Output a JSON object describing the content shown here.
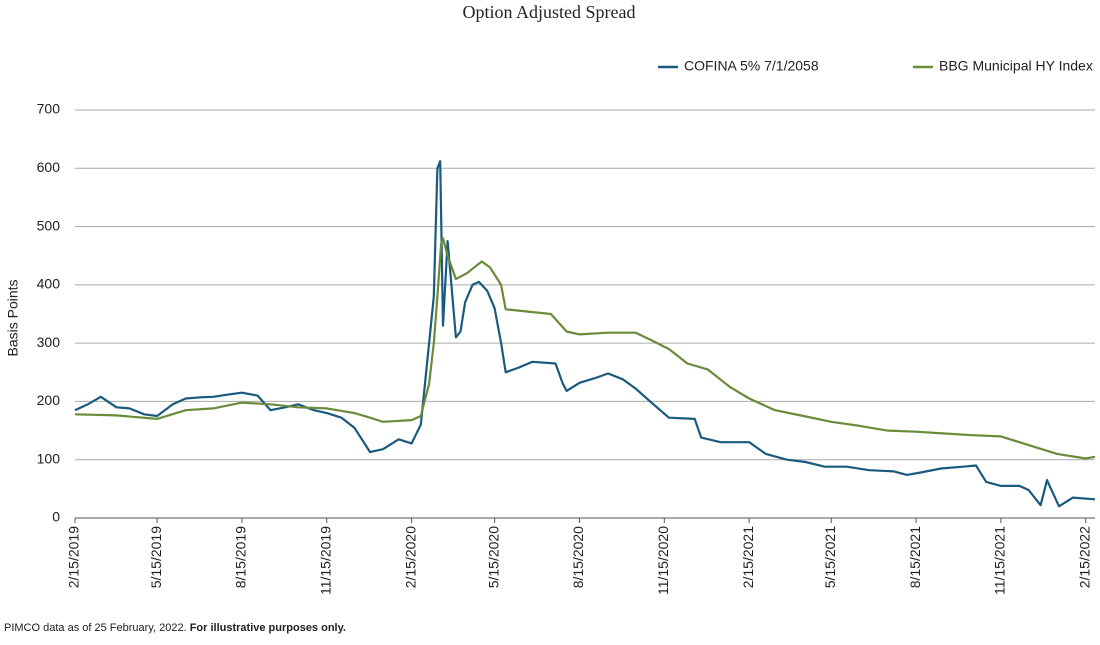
{
  "chart_data": {
    "type": "line",
    "title": "Option Adjusted Spread",
    "y_label": "Basis Points",
    "footnote": "PIMCO data as of 25 February, 2022.",
    "footnote_bold": "For illustrative purposes only.",
    "ylim": [
      0,
      700
    ],
    "yticks": [
      0,
      100,
      200,
      300,
      400,
      500,
      600,
      700
    ],
    "grid": true,
    "xlim": [
      "2019-02-15",
      "2022-02-25"
    ],
    "xticks": [
      {
        "value": "2019-02-15",
        "label": "2/15/2019"
      },
      {
        "value": "2019-05-15",
        "label": "5/15/2019"
      },
      {
        "value": "2019-08-15",
        "label": "8/15/2019"
      },
      {
        "value": "2019-11-15",
        "label": "11/15/2019"
      },
      {
        "value": "2020-02-15",
        "label": "2/15/2020"
      },
      {
        "value": "2020-05-15",
        "label": "5/15/2020"
      },
      {
        "value": "2020-08-15",
        "label": "8/15/2020"
      },
      {
        "value": "2020-11-15",
        "label": "11/15/2020"
      },
      {
        "value": "2021-02-15",
        "label": "2/15/2021"
      },
      {
        "value": "2021-05-15",
        "label": "5/15/2021"
      },
      {
        "value": "2021-08-15",
        "label": "8/15/2021"
      },
      {
        "value": "2021-11-15",
        "label": "11/15/2021"
      },
      {
        "value": "2022-02-15",
        "label": "2/15/2022"
      }
    ],
    "legend": "top-right",
    "series": [
      {
        "name": "COFINA 5% 7/1/2058",
        "color": "#1b5a7e",
        "x": [
          "2019-02-15",
          "2019-03-01",
          "2019-03-15",
          "2019-04-01",
          "2019-04-15",
          "2019-05-01",
          "2019-05-15",
          "2019-06-01",
          "2019-06-15",
          "2019-07-01",
          "2019-07-15",
          "2019-08-01",
          "2019-08-15",
          "2019-09-01",
          "2019-09-15",
          "2019-10-01",
          "2019-10-15",
          "2019-11-01",
          "2019-11-15",
          "2019-12-01",
          "2019-12-15",
          "2020-01-01",
          "2020-01-15",
          "2020-02-01",
          "2020-02-15",
          "2020-02-25",
          "2020-03-05",
          "2020-03-10",
          "2020-03-14",
          "2020-03-17",
          "2020-03-20",
          "2020-03-25",
          "2020-03-28",
          "2020-04-03",
          "2020-04-08",
          "2020-04-13",
          "2020-04-21",
          "2020-04-28",
          "2020-05-07",
          "2020-05-15",
          "2020-05-22",
          "2020-05-27",
          "2020-06-10",
          "2020-06-25",
          "2020-07-20",
          "2020-07-28",
          "2020-08-01",
          "2020-08-15",
          "2020-09-01",
          "2020-09-15",
          "2020-10-01",
          "2020-10-15",
          "2020-11-01",
          "2020-11-20",
          "2020-12-18",
          "2020-12-25",
          "2021-01-15",
          "2021-02-15",
          "2021-03-05",
          "2021-03-28",
          "2021-04-17",
          "2021-05-08",
          "2021-06-01",
          "2021-06-25",
          "2021-07-22",
          "2021-08-05",
          "2021-08-20",
          "2021-09-11",
          "2021-10-05",
          "2021-10-19",
          "2021-10-30",
          "2021-11-15",
          "2021-12-05",
          "2021-12-15",
          "2021-12-28",
          "2022-01-04",
          "2022-01-17",
          "2022-02-01",
          "2022-02-25"
        ],
        "values": [
          185,
          195,
          208,
          190,
          188,
          178,
          175,
          195,
          205,
          207,
          208,
          212,
          215,
          210,
          185,
          190,
          195,
          185,
          180,
          172,
          155,
          113,
          118,
          135,
          128,
          160,
          300,
          380,
          600,
          612,
          330,
          475,
          420,
          310,
          320,
          370,
          400,
          405,
          390,
          360,
          300,
          250,
          258,
          268,
          265,
          230,
          218,
          232,
          240,
          248,
          238,
          222,
          198,
          172,
          170,
          138,
          130,
          130,
          110,
          100,
          96,
          88,
          88,
          82,
          80,
          74,
          78,
          85,
          88,
          90,
          62,
          55,
          55,
          48,
          22,
          65,
          20,
          35,
          32
        ]
      },
      {
        "name": "BBG Municipal HY Index",
        "color": "#6a8b3a",
        "x": [
          "2019-02-15",
          "2019-04-01",
          "2019-05-15",
          "2019-06-15",
          "2019-07-15",
          "2019-08-15",
          "2019-09-15",
          "2019-10-15",
          "2019-11-15",
          "2019-12-15",
          "2020-01-01",
          "2020-01-15",
          "2020-02-15",
          "2020-02-25",
          "2020-03-05",
          "2020-03-10",
          "2020-03-14",
          "2020-03-18",
          "2020-03-20",
          "2020-03-25",
          "2020-04-03",
          "2020-04-15",
          "2020-05-01",
          "2020-05-10",
          "2020-05-22",
          "2020-05-27",
          "2020-06-15",
          "2020-07-15",
          "2020-08-01",
          "2020-08-15",
          "2020-09-15",
          "2020-10-15",
          "2020-11-01",
          "2020-11-20",
          "2020-12-10",
          "2021-01-01",
          "2021-01-25",
          "2021-02-15",
          "2021-03-15",
          "2021-04-15",
          "2021-05-15",
          "2021-06-15",
          "2021-07-15",
          "2021-08-15",
          "2021-09-15",
          "2021-10-15",
          "2021-11-15",
          "2021-12-15",
          "2022-01-15",
          "2022-02-15",
          "2022-02-25"
        ],
        "values": [
          178,
          176,
          170,
          185,
          188,
          198,
          195,
          190,
          188,
          180,
          172,
          165,
          168,
          175,
          230,
          300,
          380,
          470,
          480,
          450,
          410,
          420,
          440,
          430,
          400,
          358,
          355,
          350,
          320,
          315,
          318,
          318,
          305,
          290,
          265,
          255,
          225,
          205,
          185,
          175,
          165,
          158,
          150,
          148,
          145,
          142,
          140,
          125,
          110,
          102,
          105
        ]
      }
    ]
  }
}
